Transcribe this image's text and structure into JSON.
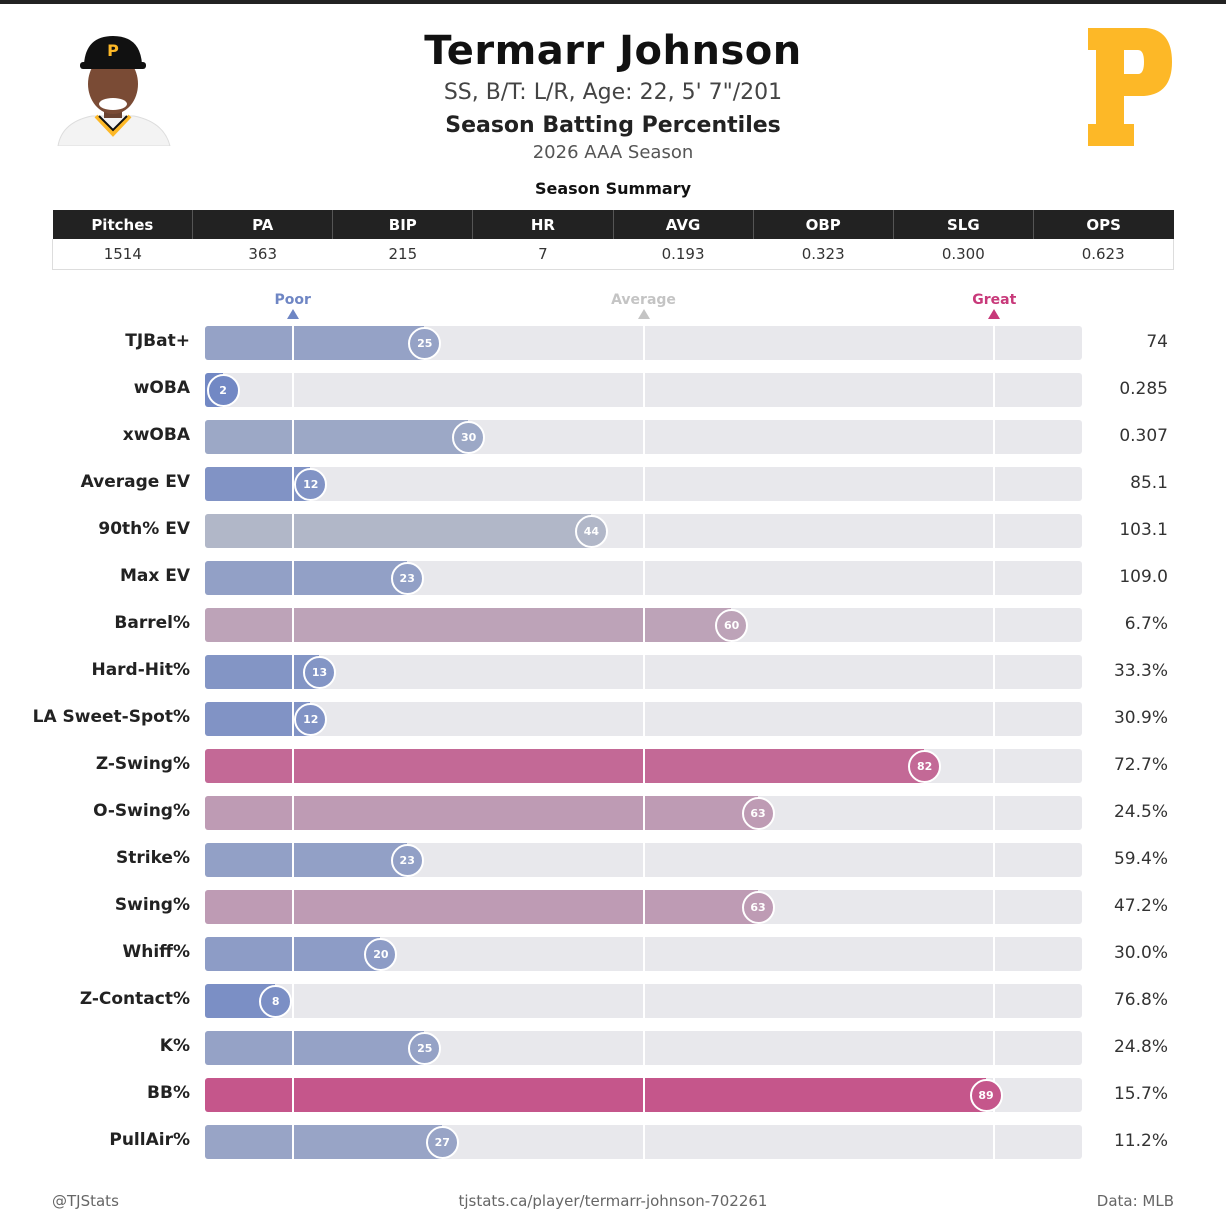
{
  "header": {
    "player_name": "Termarr Johnson",
    "player_info": "SS, B/T: L/R, Age: 22, 5' 7\"/201",
    "chart_title": "Season Batting Percentiles",
    "season_label": "2026 AAA Season",
    "summary_title": "Season Summary",
    "team_logo_letter": "P",
    "cap_letter": "P"
  },
  "summary": {
    "columns": [
      "Pitches",
      "PA",
      "BIP",
      "HR",
      "AVG",
      "OBP",
      "SLG",
      "OPS"
    ],
    "values": [
      "1514",
      "363",
      "215",
      "7",
      "0.193",
      "0.323",
      "0.300",
      "0.623"
    ]
  },
  "scale": {
    "poor": "Poor",
    "average": "Average",
    "great": "Great",
    "poor_color": "#6f86c4",
    "average_color": "#c4c4c4",
    "great_color": "#c8397a"
  },
  "colors": {
    "team_gold": "#FDB827",
    "title": "#111111",
    "track": "#e8e8ec"
  },
  "chart_data": {
    "type": "bar",
    "title": "Season Batting Percentiles",
    "xlim": [
      0,
      100
    ],
    "reference_lines": [
      10,
      50,
      90
    ],
    "categories": [
      "TJBat+",
      "wOBA",
      "xwOBA",
      "Average EV",
      "90th% EV",
      "Max EV",
      "Barrel%",
      "Hard-Hit%",
      "LA Sweet-Spot%",
      "Z-Swing%",
      "O-Swing%",
      "Strike%",
      "Swing%",
      "Whiff%",
      "Z-Contact%",
      "K%",
      "BB%",
      "PullAir%"
    ],
    "percentiles": [
      25,
      2,
      30,
      12,
      44,
      23,
      60,
      13,
      12,
      82,
      63,
      23,
      63,
      20,
      8,
      25,
      89,
      27
    ],
    "stat_values": [
      "74",
      "0.285",
      "0.307",
      "85.1",
      "103.1",
      "109.0",
      "6.7%",
      "33.3%",
      "30.9%",
      "72.7%",
      "24.5%",
      "59.4%",
      "47.2%",
      "30.0%",
      "76.8%",
      "24.8%",
      "15.7%",
      "11.2%"
    ]
  },
  "footer": {
    "left": "@TJStats",
    "center": "tjstats.ca/player/termarr-johnson-702261",
    "right": "Data: MLB"
  }
}
